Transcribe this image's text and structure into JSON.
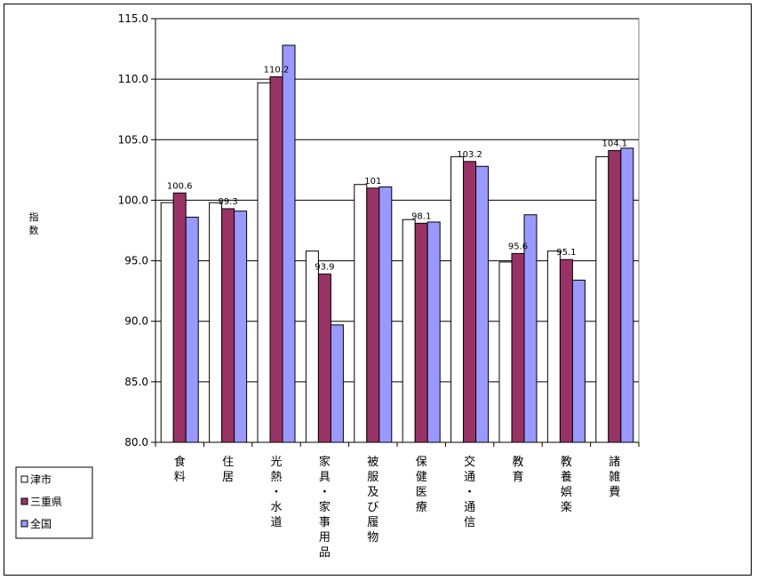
{
  "chart_data": {
    "type": "bar",
    "ylabel": "指数",
    "ylim": [
      80,
      115
    ],
    "yticks": [
      "80.0",
      "85.0",
      "90.0",
      "95.0",
      "100.0",
      "105.0",
      "110.0",
      "115.0"
    ],
    "grid": true,
    "legend_position": "bottom-left",
    "categories": [
      "食料",
      "住居",
      "光熱・水道",
      "家具・家事用品",
      "被服及び履物",
      "保健医療",
      "交通・通信",
      "教育",
      "教養娯楽",
      "諸雑費"
    ],
    "series": [
      {
        "name": "津市",
        "color": "#ffffff",
        "values": [
          99.8,
          99.8,
          109.7,
          95.8,
          101.3,
          98.4,
          103.6,
          94.9,
          95.8,
          103.6
        ]
      },
      {
        "name": "三重県",
        "color": "#993366",
        "values": [
          100.6,
          99.3,
          110.2,
          93.9,
          101.0,
          98.1,
          103.2,
          95.6,
          95.1,
          104.1
        ]
      },
      {
        "name": "全国",
        "color": "#9999ff",
        "values": [
          98.6,
          99.1,
          112.8,
          89.7,
          101.1,
          98.2,
          102.8,
          98.8,
          93.4,
          104.3
        ]
      }
    ],
    "data_labels": {
      "series": "三重県",
      "labels": [
        "100.6",
        "99.3",
        "110.2",
        "93.9",
        "101",
        "98.1",
        "103.2",
        "95.6",
        "95.1",
        "104.1"
      ]
    }
  }
}
